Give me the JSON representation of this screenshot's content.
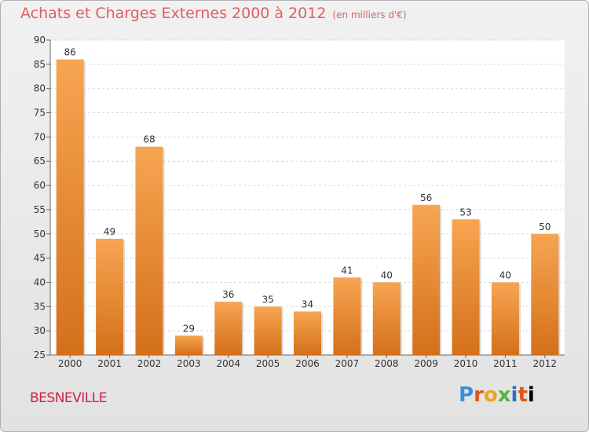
{
  "header": {
    "title": "Achats et Charges Externes 2000 à 2012",
    "subtitle": "(en milliers d'€)"
  },
  "footer": {
    "place": "BESNEVILLE",
    "brand": [
      "P",
      "r",
      "o",
      "x",
      "i",
      "t",
      "i"
    ]
  },
  "colors": {
    "bar_top": "#f7a552",
    "bar_bottom": "#d4701b",
    "title": "#e06060",
    "place": "#d02048"
  },
  "chart_data": {
    "type": "bar",
    "categories": [
      "2000",
      "2001",
      "2002",
      "2003",
      "2004",
      "2005",
      "2006",
      "2007",
      "2008",
      "2009",
      "2010",
      "2011",
      "2012"
    ],
    "values": [
      86,
      49,
      68,
      29,
      36,
      35,
      34,
      41,
      40,
      56,
      53,
      40,
      50
    ],
    "ylim": [
      25,
      90
    ],
    "yticks": [
      25,
      30,
      35,
      40,
      45,
      50,
      55,
      60,
      65,
      70,
      75,
      80,
      85,
      90
    ],
    "grid": true
  }
}
